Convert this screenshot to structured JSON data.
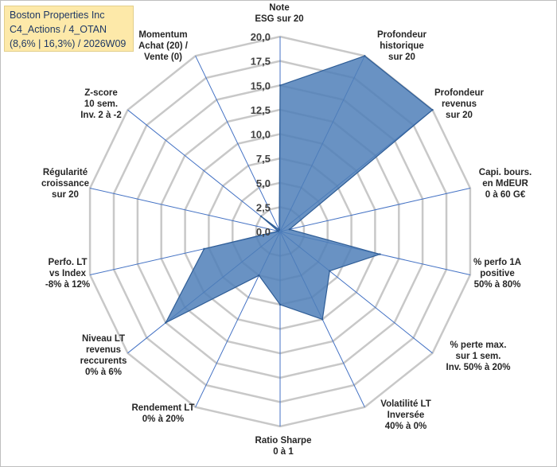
{
  "header": {
    "line1": "Boston Properties Inc",
    "line2": "C4_Actions / 4_OTAN",
    "line3": "(8,6% | 16,3%) / 2026W09"
  },
  "chart_data": {
    "type": "radar",
    "rmax": 20,
    "tick_labels": [
      "0,0",
      "2,5",
      "5,0",
      "7,5",
      "10,0",
      "12,5",
      "15,0",
      "17,5",
      "20,0"
    ],
    "axes": [
      {
        "label": [
          "Note",
          "ESG sur 20"
        ],
        "value": 15.0
      },
      {
        "label": [
          "Profondeur",
          "historique",
          "sur 20"
        ],
        "value": 20.0
      },
      {
        "label": [
          "Profondeur",
          "revenus",
          "sur 20"
        ],
        "value": 20.0
      },
      {
        "label": [
          "Capi. bours.",
          "en MdEUR",
          "0 à 60 G€"
        ],
        "value": 1.0
      },
      {
        "label": [
          "% perfo 1A",
          "positive",
          "50% à 80%"
        ],
        "value": 10.5
      },
      {
        "label": [
          "% perte max.",
          "sur 1 sem.",
          "Inv. 50% à 20%"
        ],
        "value": 6.5
      },
      {
        "label": [
          "Volatilité LT",
          "Inversée",
          "40% à 0%"
        ],
        "value": 10.0
      },
      {
        "label": [
          "Ratio Sharpe",
          "0 à 1"
        ],
        "value": 7.5
      },
      {
        "label": [
          "Rendement LT",
          "0% à 20%"
        ],
        "value": 5.0
      },
      {
        "label": [
          "Niveau LT",
          "revenus",
          "reccurents",
          "0% à 6%"
        ],
        "value": 15.0
      },
      {
        "label": [
          "Perfo. LT",
          "vs Index",
          "-8% à 12%"
        ],
        "value": 8.0
      },
      {
        "label": [
          "Régularité",
          "croissance",
          "sur 20"
        ],
        "value": 0.2
      },
      {
        "label": [
          "Z-score",
          "10 sem.",
          "Inv. 2 à -2"
        ],
        "value": 2.5
      },
      {
        "label": [
          "Momentum",
          "Achat (20) /",
          "Vente (0)"
        ],
        "value": 0.2
      }
    ],
    "colors": {
      "fill": "#4f7fb8",
      "stroke": "#2f5d96",
      "grid": "#c8c8c8",
      "spoke": "#4472c4"
    }
  }
}
